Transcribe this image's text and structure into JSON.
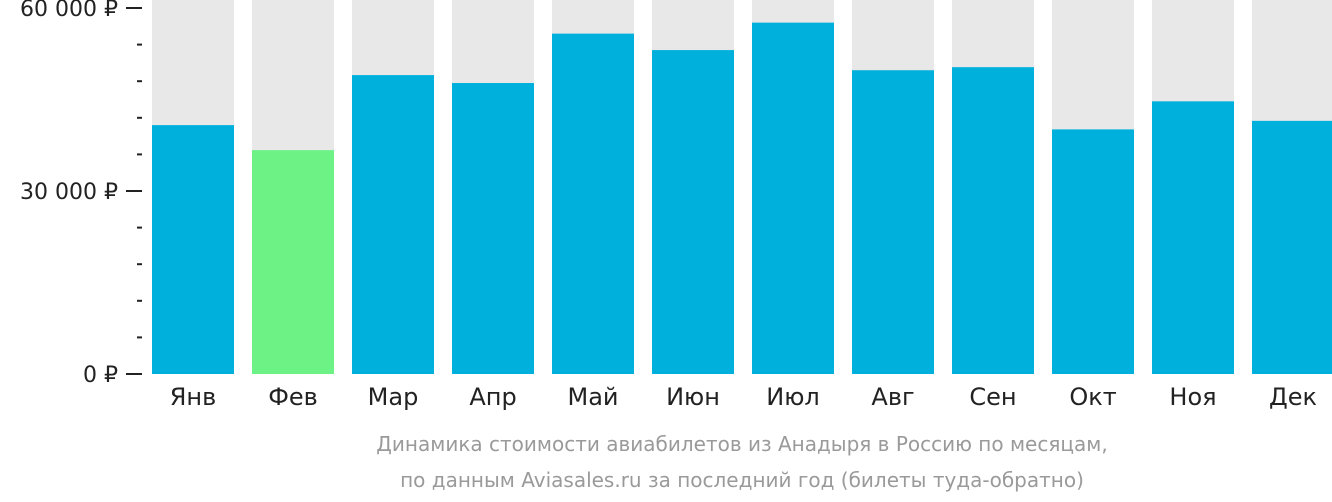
{
  "chart_data": {
    "type": "bar",
    "categories": [
      "Янв",
      "Фев",
      "Мар",
      "Апр",
      "Май",
      "Июн",
      "Июл",
      "Авг",
      "Сен",
      "Окт",
      "Ноя",
      "Дек"
    ],
    "values": [
      40800,
      36700,
      49000,
      47700,
      55800,
      53100,
      57600,
      49800,
      50300,
      40100,
      44700,
      41500
    ],
    "highlight_index": 1,
    "ylim": [
      0,
      60000
    ],
    "y_ticks": [
      {
        "value": 0,
        "label": "0 ₽"
      },
      {
        "value": 30000,
        "label": "30 000 ₽"
      },
      {
        "value": 60000,
        "label": "60 000 ₽"
      }
    ],
    "minor_tick_step": 6000,
    "colors": {
      "bar": "#00b0dc",
      "highlight": "#6cf285",
      "background_bar": "#e8e8e8",
      "axis": "#222222"
    }
  },
  "caption": {
    "line1": "Динамика стоимости авиабилетов из Анадыря в Россию по месяцам,",
    "line2": "по данным Aviasales.ru за последний год (билеты туда-обратно)"
  }
}
